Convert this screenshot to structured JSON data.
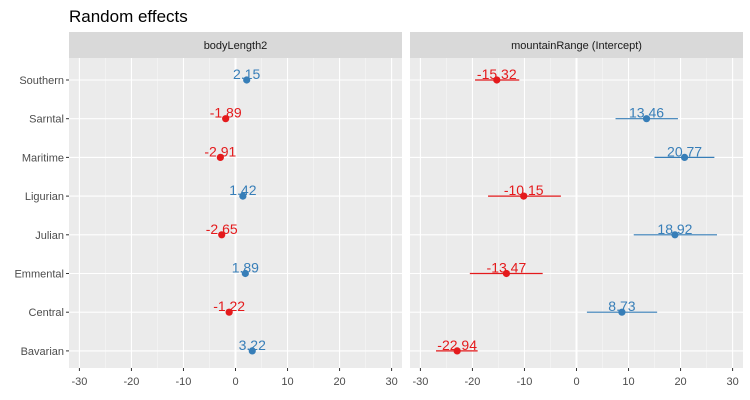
{
  "title": "Random effects",
  "colors": {
    "negative": "#e41a1c",
    "positive": "#377eb8",
    "panel_bg": "#ebebeb",
    "strip_bg": "#d9d9d9",
    "grid": "#ffffff"
  },
  "chart_data": {
    "type": "scatter",
    "title": "Random effects",
    "xlim": [
      -32,
      32
    ],
    "x_ticks": [
      -30,
      -20,
      -10,
      0,
      10,
      20,
      30
    ],
    "x_tick_labels": [
      "-30",
      "-20",
      "-10",
      "0",
      "10",
      "20",
      "30"
    ],
    "categories": [
      "Southern",
      "Sarntal",
      "Maritime",
      "Ligurian",
      "Julian",
      "Emmental",
      "Central",
      "Bavarian"
    ],
    "panels": [
      {
        "name": "bodyLength2",
        "points": [
          {
            "group": "Southern",
            "value": 2.15,
            "label": "2.15",
            "lower": 1.6,
            "upper": 2.7
          },
          {
            "group": "Sarntal",
            "value": -1.89,
            "label": "-1.89",
            "lower": -2.4,
            "upper": -1.4
          },
          {
            "group": "Maritime",
            "value": -2.91,
            "label": "-2.91",
            "lower": -3.4,
            "upper": -2.4
          },
          {
            "group": "Ligurian",
            "value": 1.42,
            "label": "1.42",
            "lower": 0.9,
            "upper": 1.9
          },
          {
            "group": "Julian",
            "value": -2.65,
            "label": "-2.65",
            "lower": -3.1,
            "upper": -2.2
          },
          {
            "group": "Emmental",
            "value": 1.89,
            "label": "1.89",
            "lower": 1.4,
            "upper": 2.4
          },
          {
            "group": "Central",
            "value": -1.22,
            "label": "-1.22",
            "lower": -1.7,
            "upper": -0.7
          },
          {
            "group": "Bavarian",
            "value": 3.22,
            "label": "3.22",
            "lower": 2.7,
            "upper": 3.7
          }
        ]
      },
      {
        "name": "mountainRange (Intercept)",
        "points": [
          {
            "group": "Southern",
            "value": -15.32,
            "label": "-15.32",
            "lower": -19.5,
            "upper": -11.0
          },
          {
            "group": "Sarntal",
            "value": 13.46,
            "label": "13.46",
            "lower": 7.5,
            "upper": 19.5
          },
          {
            "group": "Maritime",
            "value": 20.77,
            "label": "20.77",
            "lower": 15.0,
            "upper": 26.5
          },
          {
            "group": "Ligurian",
            "value": -10.15,
            "label": "-10.15",
            "lower": -17.0,
            "upper": -3.0
          },
          {
            "group": "Julian",
            "value": 18.92,
            "label": "18.92",
            "lower": 11.0,
            "upper": 27.0
          },
          {
            "group": "Emmental",
            "value": -13.47,
            "label": "-13.47",
            "lower": -20.5,
            "upper": -6.5
          },
          {
            "group": "Central",
            "value": 8.73,
            "label": "8.73",
            "lower": 2.0,
            "upper": 15.5
          },
          {
            "group": "Bavarian",
            "value": -22.94,
            "label": "-22.94",
            "lower": -27.0,
            "upper": -19.0
          }
        ]
      }
    ]
  }
}
